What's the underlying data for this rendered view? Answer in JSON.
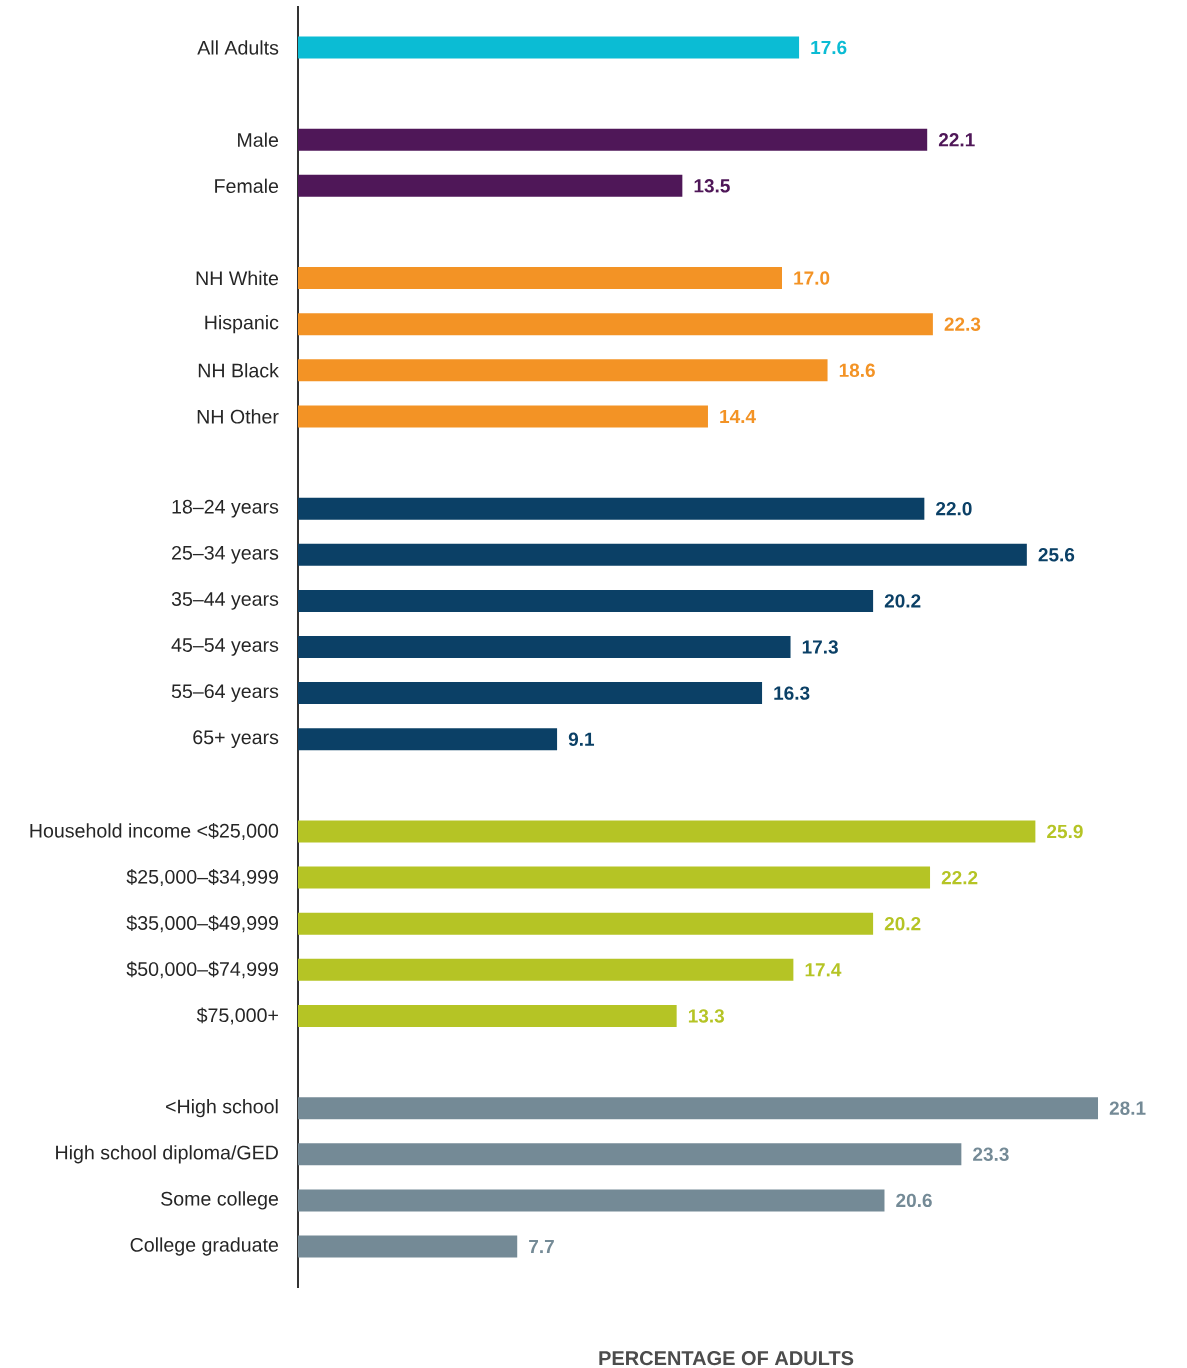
{
  "chart_data": {
    "type": "bar",
    "orientation": "horizontal",
    "xlabel": "PERCENTAGE OF ADULTS",
    "value_labels": [
      "17.6",
      null,
      "22.1",
      "13.5",
      null,
      "17.0",
      "22.3",
      "18.6",
      "14.4",
      null,
      "22.0",
      "25.6",
      "20.2",
      "17.3",
      "16.3",
      "9.1",
      null,
      "25.9",
      "22.2",
      "20.2",
      "17.4",
      "13.3",
      null,
      "28.1",
      "23.3",
      "20.6",
      "7.7"
    ],
    "categories": [
      "All Adults",
      null,
      "Male",
      "Female",
      null,
      "NH White",
      "Hispanic",
      "NH Black",
      "NH Other",
      null,
      "18–24 years",
      "25–34 years",
      "35–44 years",
      "45–54 years",
      "55–64 years",
      "65+ years",
      null,
      "Household income <$25,000",
      "$25,000–$34,999",
      "$35,000–$49,999",
      "$50,000–$74,999",
      "$75,000+",
      null,
      "<High school",
      "High school diploma/GED",
      "Some college",
      "College graduate"
    ],
    "values": [
      17.6,
      null,
      22.1,
      13.5,
      null,
      17.0,
      22.3,
      18.6,
      14.4,
      null,
      22.0,
      25.6,
      20.2,
      17.3,
      16.3,
      9.1,
      null,
      25.9,
      22.2,
      20.2,
      17.4,
      13.3,
      null,
      28.1,
      23.3,
      20.6,
      7.7
    ],
    "colors": [
      "#0bbcd4",
      null,
      "#4f1758",
      "#4f1758",
      null,
      "#f39325",
      "#f39325",
      "#f39325",
      "#f39325",
      null,
      "#0b4066",
      "#0b4066",
      "#0b4066",
      "#0b4066",
      "#0b4066",
      "#0b4066",
      null,
      "#b5c425",
      "#b5c425",
      "#b5c425",
      "#b5c425",
      "#b5c425",
      null,
      "#748a96",
      "#748a96",
      "#748a96",
      "#748a96"
    ]
  }
}
